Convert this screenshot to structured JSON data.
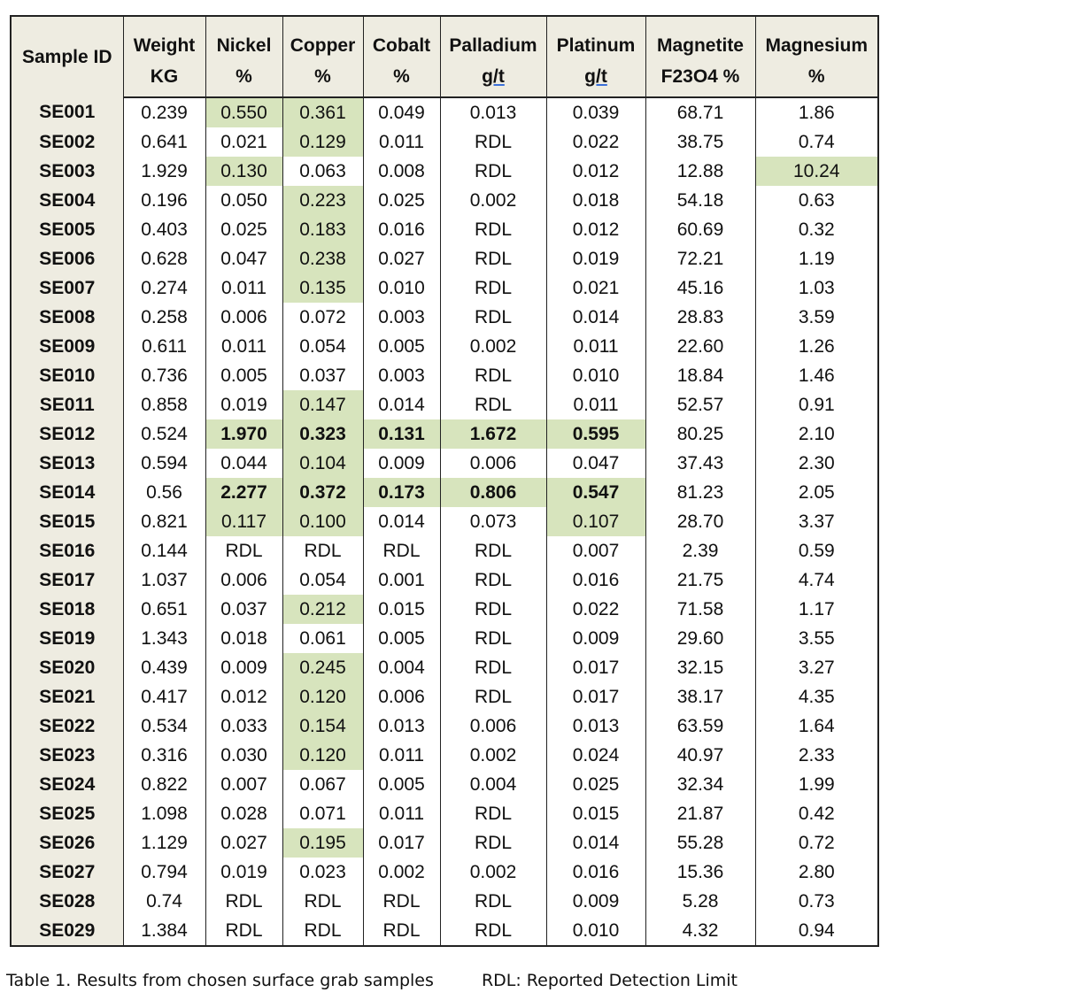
{
  "table": {
    "headers": [
      {
        "name": "Sample ID",
        "unit": ""
      },
      {
        "name": "Weight",
        "unit": "KG"
      },
      {
        "name": "Nickel",
        "unit": "%"
      },
      {
        "name": "Copper",
        "unit": "%"
      },
      {
        "name": "Cobalt",
        "unit": "%"
      },
      {
        "name": "Palladium",
        "unit": "g/t"
      },
      {
        "name": "Platinum",
        "unit": "g/t"
      },
      {
        "name": "Magnetite",
        "unit": "F23O4 %"
      },
      {
        "name": "Magnesium",
        "unit": "%"
      }
    ],
    "highlight_color": "#d7e4bd",
    "header_color": "#eeece1",
    "rows": [
      {
        "cells": [
          "SE001",
          "0.239",
          "0.550",
          "0.361",
          "0.049",
          "0.013",
          "0.039",
          "68.71",
          "1.86"
        ],
        "hl": [
          2,
          3
        ],
        "bold": false
      },
      {
        "cells": [
          "SE002",
          "0.641",
          "0.021",
          "0.129",
          "0.011",
          "RDL",
          "0.022",
          "38.75",
          "0.74"
        ],
        "hl": [
          3
        ],
        "bold": false
      },
      {
        "cells": [
          "SE003",
          "1.929",
          "0.130",
          "0.063",
          "0.008",
          "RDL",
          "0.012",
          "12.88",
          "10.24"
        ],
        "hl": [
          2,
          8
        ],
        "bold": false
      },
      {
        "cells": [
          "SE004",
          "0.196",
          "0.050",
          "0.223",
          "0.025",
          "0.002",
          "0.018",
          "54.18",
          "0.63"
        ],
        "hl": [
          3
        ],
        "bold": false
      },
      {
        "cells": [
          "SE005",
          "0.403",
          "0.025",
          "0.183",
          "0.016",
          "RDL",
          "0.012",
          "60.69",
          "0.32"
        ],
        "hl": [
          3
        ],
        "bold": false
      },
      {
        "cells": [
          "SE006",
          "0.628",
          "0.047",
          "0.238",
          "0.027",
          "RDL",
          "0.019",
          "72.21",
          "1.19"
        ],
        "hl": [
          3
        ],
        "bold": false
      },
      {
        "cells": [
          "SE007",
          "0.274",
          "0.011",
          "0.135",
          "0.010",
          "RDL",
          "0.021",
          "45.16",
          "1.03"
        ],
        "hl": [
          3
        ],
        "bold": false
      },
      {
        "cells": [
          "SE008",
          "0.258",
          "0.006",
          "0.072",
          "0.003",
          "RDL",
          "0.014",
          "28.83",
          "3.59"
        ],
        "hl": [],
        "bold": false
      },
      {
        "cells": [
          "SE009",
          "0.611",
          "0.011",
          "0.054",
          "0.005",
          "0.002",
          "0.011",
          "22.60",
          "1.26"
        ],
        "hl": [],
        "bold": false
      },
      {
        "cells": [
          "SE010",
          "0.736",
          "0.005",
          "0.037",
          "0.003",
          "RDL",
          "0.010",
          "18.84",
          "1.46"
        ],
        "hl": [],
        "bold": false
      },
      {
        "cells": [
          "SE011",
          "0.858",
          "0.019",
          "0.147",
          "0.014",
          "RDL",
          "0.011",
          "52.57",
          "0.91"
        ],
        "hl": [
          3
        ],
        "bold": false
      },
      {
        "cells": [
          "SE012",
          "0.524",
          "1.970",
          "0.323",
          "0.131",
          "1.672",
          "0.595",
          "80.25",
          "2.10"
        ],
        "hl": [
          2,
          3,
          4,
          5,
          6
        ],
        "bold": true
      },
      {
        "cells": [
          "SE013",
          "0.594",
          "0.044",
          "0.104",
          "0.009",
          "0.006",
          "0.047",
          "37.43",
          "2.30"
        ],
        "hl": [
          3
        ],
        "bold": false
      },
      {
        "cells": [
          "SE014",
          "0.56",
          "2.277",
          "0.372",
          "0.173",
          "0.806",
          "0.547",
          "81.23",
          "2.05"
        ],
        "hl": [
          2,
          3,
          4,
          5,
          6
        ],
        "bold": true
      },
      {
        "cells": [
          "SE015",
          "0.821",
          "0.117",
          "0.100",
          "0.014",
          "0.073",
          "0.107",
          "28.70",
          "3.37"
        ],
        "hl": [
          2,
          3,
          6
        ],
        "bold": false
      },
      {
        "cells": [
          "SE016",
          "0.144",
          "RDL",
          "RDL",
          "RDL",
          "RDL",
          "0.007",
          "2.39",
          "0.59"
        ],
        "hl": [],
        "bold": false
      },
      {
        "cells": [
          "SE017",
          "1.037",
          "0.006",
          "0.054",
          "0.001",
          "RDL",
          "0.016",
          "21.75",
          "4.74"
        ],
        "hl": [],
        "bold": false
      },
      {
        "cells": [
          "SE018",
          "0.651",
          "0.037",
          "0.212",
          "0.015",
          "RDL",
          "0.022",
          "71.58",
          "1.17"
        ],
        "hl": [
          3
        ],
        "bold": false
      },
      {
        "cells": [
          "SE019",
          "1.343",
          "0.018",
          "0.061",
          "0.005",
          "RDL",
          "0.009",
          "29.60",
          "3.55"
        ],
        "hl": [],
        "bold": false
      },
      {
        "cells": [
          "SE020",
          "0.439",
          "0.009",
          "0.245",
          "0.004",
          "RDL",
          "0.017",
          "32.15",
          "3.27"
        ],
        "hl": [
          3
        ],
        "bold": false
      },
      {
        "cells": [
          "SE021",
          "0.417",
          "0.012",
          "0.120",
          "0.006",
          "RDL",
          "0.017",
          "38.17",
          "4.35"
        ],
        "hl": [
          3
        ],
        "bold": false
      },
      {
        "cells": [
          "SE022",
          "0.534",
          "0.033",
          "0.154",
          "0.013",
          "0.006",
          "0.013",
          "63.59",
          "1.64"
        ],
        "hl": [
          3
        ],
        "bold": false
      },
      {
        "cells": [
          "SE023",
          "0.316",
          "0.030",
          "0.120",
          "0.011",
          "0.002",
          "0.024",
          "40.97",
          "2.33"
        ],
        "hl": [
          3
        ],
        "bold": false
      },
      {
        "cells": [
          "SE024",
          "0.822",
          "0.007",
          "0.067",
          "0.005",
          "0.004",
          "0.025",
          "32.34",
          "1.99"
        ],
        "hl": [],
        "bold": false
      },
      {
        "cells": [
          "SE025",
          "1.098",
          "0.028",
          "0.071",
          "0.011",
          "RDL",
          "0.015",
          "21.87",
          "0.42"
        ],
        "hl": [],
        "bold": false
      },
      {
        "cells": [
          "SE026",
          "1.129",
          "0.027",
          "0.195",
          "0.017",
          "RDL",
          "0.014",
          "55.28",
          "0.72"
        ],
        "hl": [
          3
        ],
        "bold": false
      },
      {
        "cells": [
          "SE027",
          "0.794",
          "0.019",
          "0.023",
          "0.002",
          "0.002",
          "0.016",
          "15.36",
          "2.80"
        ],
        "hl": [],
        "bold": false
      },
      {
        "cells": [
          "SE028",
          "0.74",
          "RDL",
          "RDL",
          "RDL",
          "RDL",
          "0.009",
          "5.28",
          "0.73"
        ],
        "hl": [],
        "bold": false
      },
      {
        "cells": [
          "SE029",
          "1.384",
          "RDL",
          "RDL",
          "RDL",
          "RDL",
          "0.010",
          "4.32",
          "0.94"
        ],
        "hl": [],
        "bold": false
      }
    ]
  },
  "caption": {
    "title": "Table 1. Results from chosen surface grab samples",
    "note": "RDL: Reported Detection Limit"
  }
}
